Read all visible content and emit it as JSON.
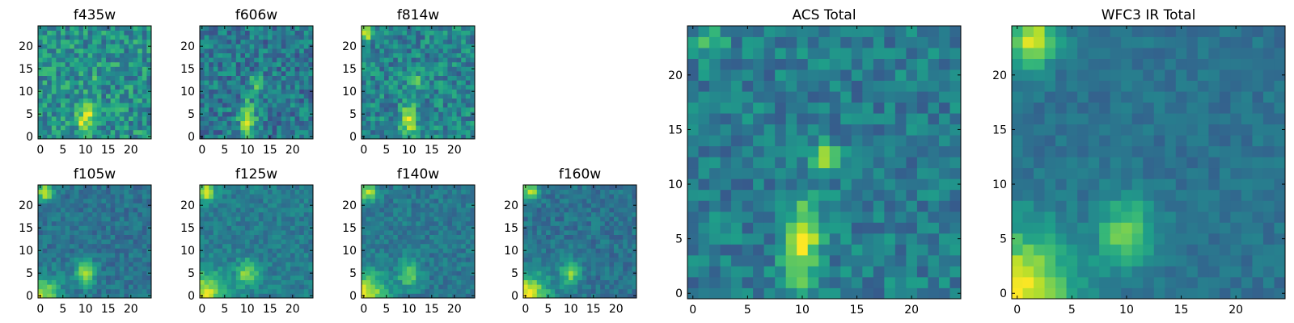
{
  "figure": {
    "colormap": "viridis",
    "colors": [
      "#440154",
      "#3b528b",
      "#21908d",
      "#5dc963",
      "#fde725"
    ]
  },
  "chart_data": [
    {
      "type": "heatmap",
      "title": "f435w",
      "x_ticks": [
        0,
        5,
        10,
        15,
        20
      ],
      "y_ticks": [
        0,
        5,
        10,
        15,
        20
      ],
      "xlim": [
        0,
        24
      ],
      "ylim": [
        0,
        24
      ],
      "grid_size": 25,
      "sources": [
        {
          "x": 10,
          "y": 4,
          "sx": 1.2,
          "sy": 2.5,
          "amp": 0.45
        },
        {
          "x": 12,
          "y": 12,
          "sx": 1,
          "sy": 1,
          "amp": 0.25
        }
      ],
      "background": 0.5,
      "noise": 0.2
    },
    {
      "type": "heatmap",
      "title": "f606w",
      "x_ticks": [
        0,
        5,
        10,
        15,
        20
      ],
      "y_ticks": [
        0,
        5,
        10,
        15,
        20
      ],
      "xlim": [
        0,
        24
      ],
      "ylim": [
        0,
        24
      ],
      "grid_size": 25,
      "sources": [
        {
          "x": 10,
          "y": 4,
          "sx": 1.2,
          "sy": 2.5,
          "amp": 0.55
        },
        {
          "x": 12,
          "y": 12,
          "sx": 1,
          "sy": 1,
          "amp": 0.35
        }
      ],
      "background": 0.4,
      "noise": 0.18
    },
    {
      "type": "heatmap",
      "title": "f814w",
      "x_ticks": [
        0,
        5,
        10,
        15,
        20
      ],
      "y_ticks": [
        0,
        5,
        10,
        15,
        20
      ],
      "xlim": [
        0,
        24
      ],
      "ylim": [
        0,
        24
      ],
      "grid_size": 25,
      "sources": [
        {
          "x": 10,
          "y": 4,
          "sx": 1.2,
          "sy": 2.5,
          "amp": 0.5
        },
        {
          "x": 12,
          "y": 12,
          "sx": 1,
          "sy": 1,
          "amp": 0.3
        },
        {
          "x": 1,
          "y": 23,
          "sx": 1,
          "sy": 1,
          "amp": 0.5
        }
      ],
      "background": 0.45,
      "noise": 0.18
    },
    {
      "type": "heatmap",
      "title": "f105w",
      "x_ticks": [
        0,
        5,
        10,
        15,
        20
      ],
      "y_ticks": [
        0,
        5,
        10,
        15,
        20
      ],
      "xlim": [
        0,
        24
      ],
      "ylim": [
        0,
        24
      ],
      "grid_size": 25,
      "sources": [
        {
          "x": 10,
          "y": 5,
          "sx": 1.6,
          "sy": 2,
          "amp": 0.45
        },
        {
          "x": 1,
          "y": 23,
          "sx": 1.3,
          "sy": 1.3,
          "amp": 0.55
        },
        {
          "x": 0,
          "y": 0,
          "sx": 3,
          "sy": 3,
          "amp": 0.5
        }
      ],
      "background": 0.38,
      "noise": 0.1
    },
    {
      "type": "heatmap",
      "title": "f125w",
      "x_ticks": [
        0,
        5,
        10,
        15,
        20
      ],
      "y_ticks": [
        0,
        5,
        10,
        15,
        20
      ],
      "xlim": [
        0,
        24
      ],
      "ylim": [
        0,
        24
      ],
      "grid_size": 25,
      "sources": [
        {
          "x": 10,
          "y": 5,
          "sx": 1.6,
          "sy": 2,
          "amp": 0.4
        },
        {
          "x": 1,
          "y": 23,
          "sx": 1.3,
          "sy": 1.3,
          "amp": 0.55
        },
        {
          "x": 0,
          "y": 0,
          "sx": 3.5,
          "sy": 3.5,
          "amp": 0.55
        }
      ],
      "background": 0.42,
      "noise": 0.1
    },
    {
      "type": "heatmap",
      "title": "f140w",
      "x_ticks": [
        0,
        5,
        10,
        15,
        20
      ],
      "y_ticks": [
        0,
        5,
        10,
        15,
        20
      ],
      "xlim": [
        0,
        24
      ],
      "ylim": [
        0,
        24
      ],
      "grid_size": 25,
      "sources": [
        {
          "x": 10,
          "y": 5,
          "sx": 1.6,
          "sy": 2,
          "amp": 0.4
        },
        {
          "x": 1,
          "y": 23,
          "sx": 1.3,
          "sy": 1.3,
          "amp": 0.55
        },
        {
          "x": 0,
          "y": 0,
          "sx": 3.5,
          "sy": 3.5,
          "amp": 0.55
        }
      ],
      "background": 0.4,
      "noise": 0.1
    },
    {
      "type": "heatmap",
      "title": "f160w",
      "x_ticks": [
        0,
        5,
        10,
        15,
        20
      ],
      "y_ticks": [
        0,
        5,
        10,
        15,
        20
      ],
      "xlim": [
        0,
        24
      ],
      "ylim": [
        0,
        24
      ],
      "grid_size": 25,
      "sources": [
        {
          "x": 10,
          "y": 5,
          "sx": 1.6,
          "sy": 2,
          "amp": 0.4
        },
        {
          "x": 1,
          "y": 23,
          "sx": 1.3,
          "sy": 1.3,
          "amp": 0.55
        },
        {
          "x": 0,
          "y": 0,
          "sx": 3.5,
          "sy": 3.5,
          "amp": 0.6
        }
      ],
      "background": 0.38,
      "noise": 0.1
    },
    {
      "type": "heatmap",
      "title": "ACS Total",
      "x_ticks": [
        0,
        5,
        10,
        15,
        20
      ],
      "y_ticks": [
        0,
        5,
        10,
        15,
        20
      ],
      "xlim": [
        0,
        24
      ],
      "ylim": [
        0,
        24
      ],
      "grid_size": 25,
      "sources": [
        {
          "x": 10,
          "y": 4.5,
          "sx": 1.1,
          "sy": 2.6,
          "amp": 0.55
        },
        {
          "x": 12,
          "y": 12.5,
          "sx": 0.9,
          "sy": 0.9,
          "amp": 0.4
        },
        {
          "x": 1.5,
          "y": 23,
          "sx": 0.9,
          "sy": 0.9,
          "amp": 0.35
        }
      ],
      "background": 0.42,
      "noise": 0.14
    },
    {
      "type": "heatmap",
      "title": "WFC3 IR Total",
      "x_ticks": [
        0,
        5,
        10,
        15,
        20
      ],
      "y_ticks": [
        0,
        5,
        10,
        15,
        20
      ],
      "xlim": [
        0,
        24
      ],
      "ylim": [
        0,
        24
      ],
      "grid_size": 25,
      "sources": [
        {
          "x": 10,
          "y": 5.5,
          "sx": 1.7,
          "sy": 2.2,
          "amp": 0.42
        },
        {
          "x": 1.5,
          "y": 23,
          "sx": 1.5,
          "sy": 1.5,
          "amp": 0.6
        },
        {
          "x": 0,
          "y": 0,
          "sx": 3.5,
          "sy": 4,
          "amp": 0.6
        }
      ],
      "background": 0.38,
      "noise": 0.07
    }
  ]
}
